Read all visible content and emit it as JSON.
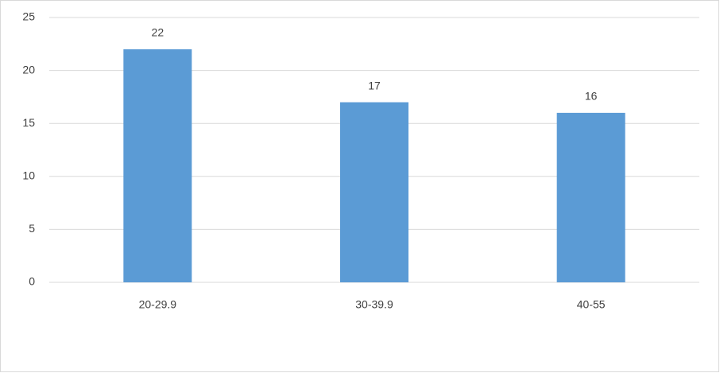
{
  "chart_data": {
    "type": "bar",
    "categories": [
      "20-29.9",
      "30-39.9",
      "40-55"
    ],
    "values": [
      22,
      17,
      16
    ],
    "color": "#5b9bd5",
    "ylim": [
      0,
      25
    ],
    "yticks": [
      0,
      5,
      10,
      15,
      20,
      25
    ],
    "grid": true
  }
}
